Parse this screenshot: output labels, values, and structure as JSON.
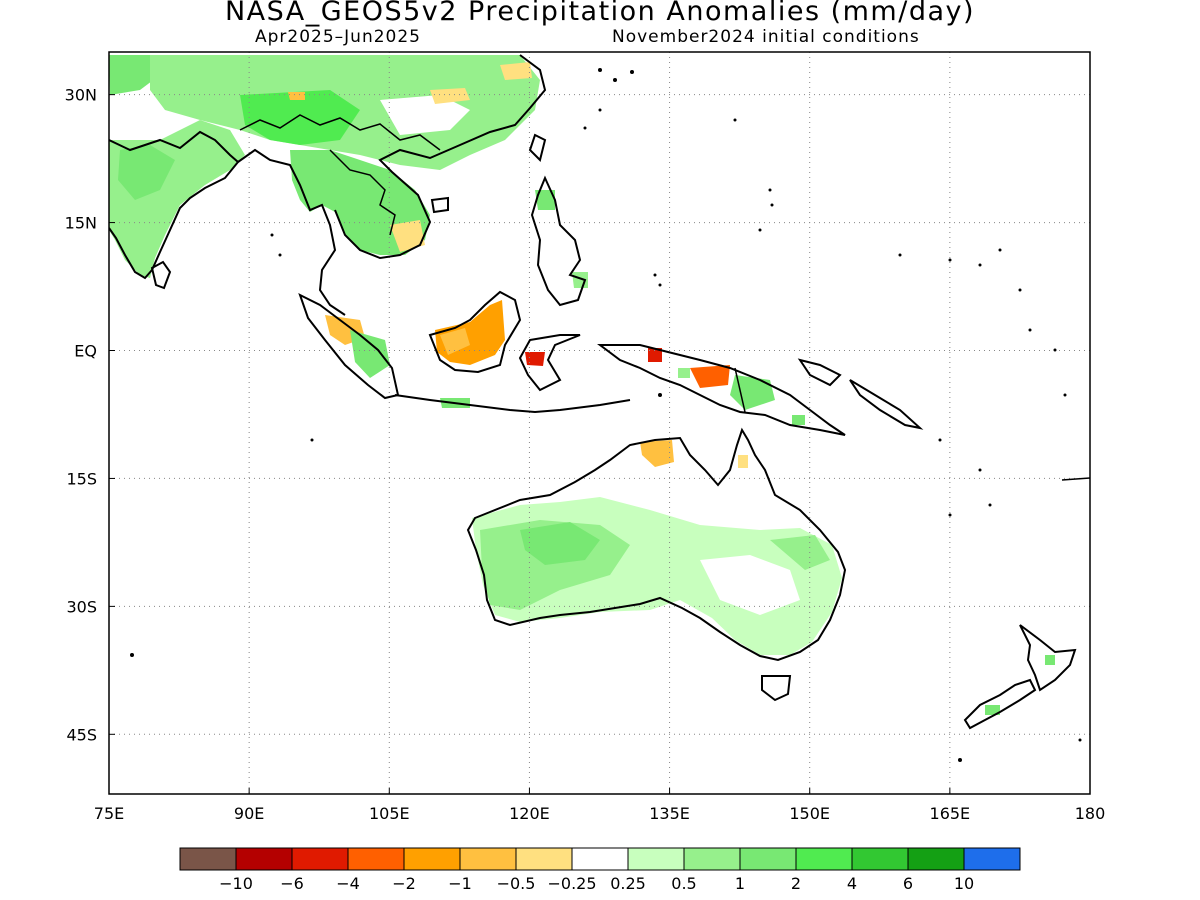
{
  "title": "NASA_GEOS5v2 Precipitation Anomalies (mm/day)",
  "subtitle_left": "Apr2025–Jun2025",
  "subtitle_right": "November2024 initial conditions",
  "axes": {
    "lon_range": [
      75,
      180
    ],
    "lat_range": [
      -52,
      35
    ],
    "lon_ticks": [
      "75E",
      "90E",
      "105E",
      "120E",
      "135E",
      "150E",
      "165E",
      "180"
    ],
    "lat_ticks": [
      "30N",
      "15N",
      "EQ",
      "15S",
      "30S",
      "45S"
    ],
    "grid": "dotted"
  },
  "colorbar": {
    "colors": [
      "#7a5548",
      "#b40000",
      "#e01a00",
      "#ff6000",
      "#ffa000",
      "#ffc040",
      "#ffe080",
      "#ffffff",
      "#c8ffbe",
      "#96f08c",
      "#78e873",
      "#50eb50",
      "#32c832",
      "#14a014",
      "#1e6eeb"
    ],
    "labels": [
      "−10",
      "−6",
      "−4",
      "−2",
      "−1",
      "−0.5",
      "−0.25",
      "0.25",
      "0.5",
      "1",
      "2",
      "4",
      "6",
      "10"
    ]
  },
  "anomalies": [
    {
      "region": "India / Bay of Bengal",
      "sign": "positive",
      "color": "#96f08c"
    },
    {
      "region": "Southern China",
      "sign": "positive",
      "color": "#96f08c"
    },
    {
      "region": "Indochina",
      "sign": "positive",
      "color": "#78e873"
    },
    {
      "region": "Borneo",
      "sign": "negative",
      "color": "#ffa000"
    },
    {
      "region": "Sulawesi",
      "sign": "negative",
      "color": "#e01a00"
    },
    {
      "region": "New Guinea",
      "sign": "mixed",
      "color": "#ffa000"
    },
    {
      "region": "Northern Australia",
      "sign": "negative",
      "color": "#ffc040"
    },
    {
      "region": "Western Australia",
      "sign": "positive",
      "color": "#96f08c"
    },
    {
      "region": "Eastern Australia",
      "sign": "positive",
      "color": "#c8ffbe"
    }
  ]
}
